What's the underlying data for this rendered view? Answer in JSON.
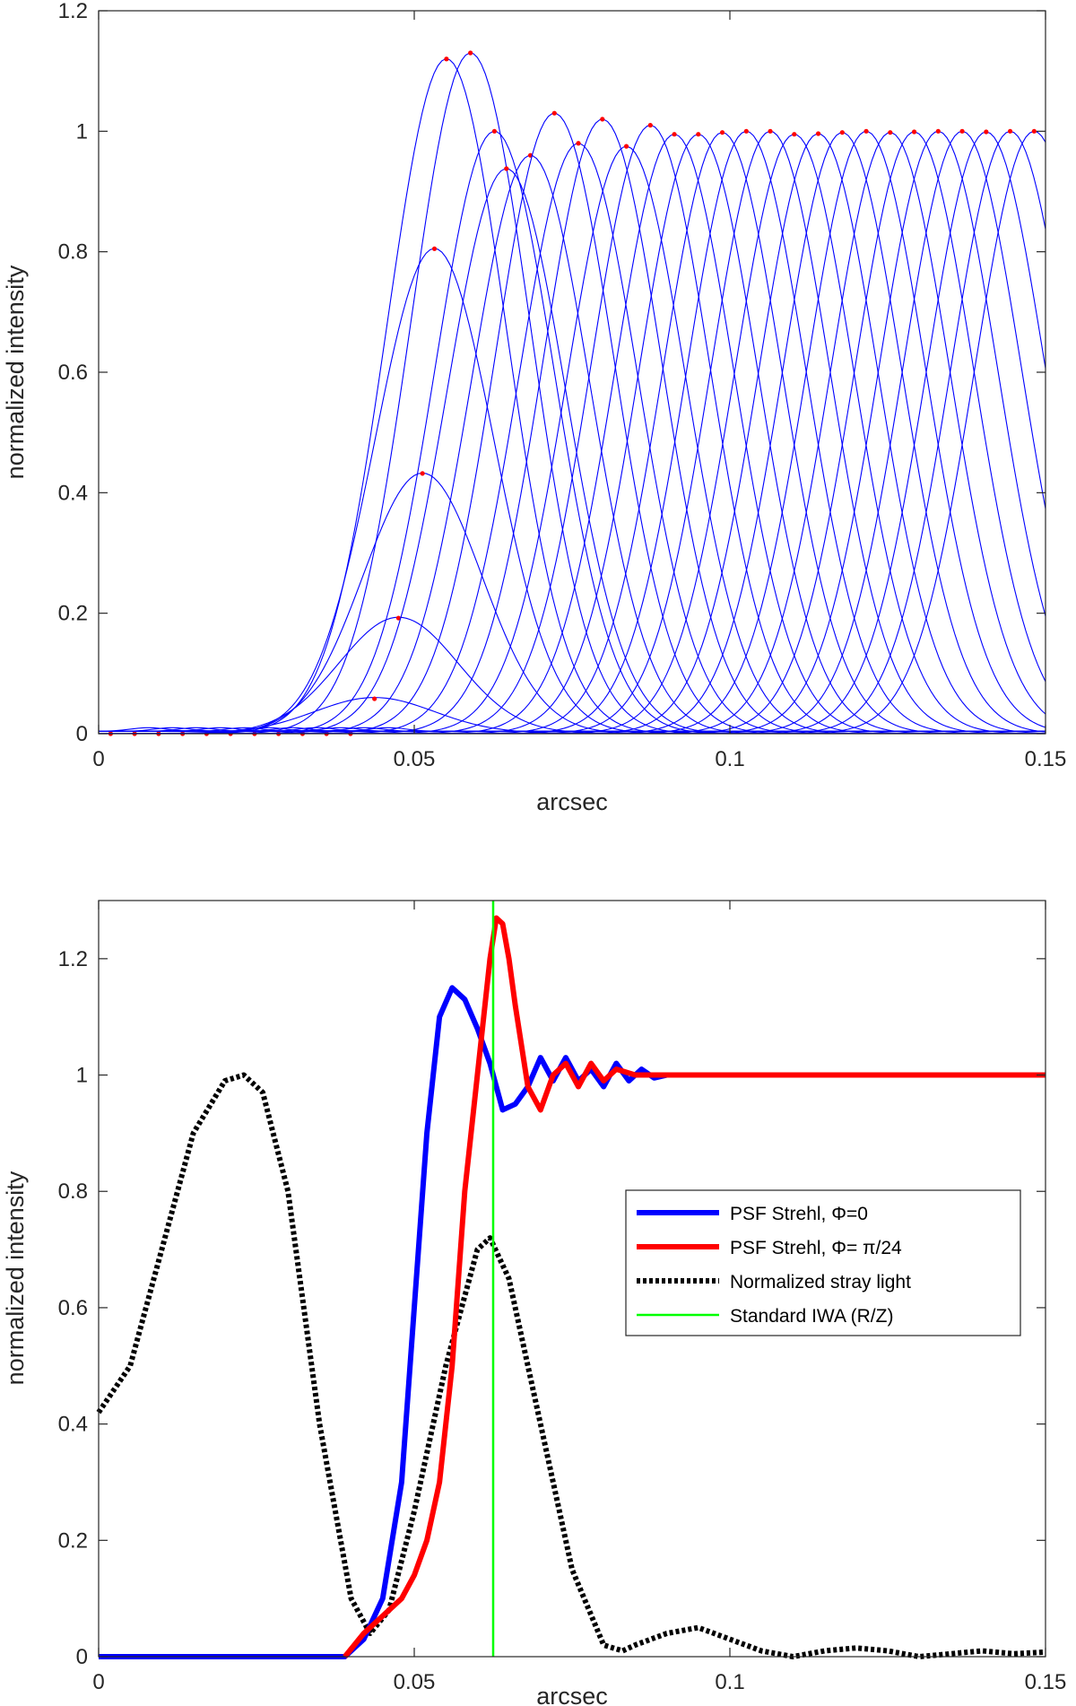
{
  "chart_data": [
    {
      "type": "line",
      "xlabel": "arcsec",
      "ylabel": "normalized intensity",
      "xlim": [
        0,
        0.15
      ],
      "ylim": [
        0,
        1.2
      ],
      "xticks": [
        0,
        0.05,
        0.1,
        0.15
      ],
      "xtick_labels": [
        "0",
        "0.05",
        "0.1",
        "0.15"
      ],
      "yticks": [
        0,
        0.2,
        0.4,
        0.6,
        0.8,
        1.0,
        1.2
      ],
      "ytick_labels": [
        "0",
        "0.2",
        "0.4",
        "0.6",
        "0.8",
        "1",
        "1.2"
      ],
      "grid": false,
      "line_color": "#0000ff",
      "marker_color": "#ff0000",
      "curve_width": 0.0133,
      "series": [
        {
          "x": [
            0.0019,
            0.0057,
            0.0095,
            0.0133,
            0.0171,
            0.0209,
            0.0247,
            0.0285,
            0.0323,
            0.0361,
            0.0399
          ],
          "y": [
            0.0,
            0.0,
            0.0,
            0.0,
            0.0,
            0.0,
            0.0,
            0.0,
            0.0,
            0.0,
            0.0
          ]
        },
        {
          "x": [
            0.0437
          ],
          "y": [
            0.058
          ]
        },
        {
          "x": [
            0.0475
          ],
          "y": [
            0.192
          ]
        },
        {
          "x": [
            0.0513
          ],
          "y": [
            0.432
          ]
        },
        {
          "x": [
            0.0532
          ],
          "y": [
            0.805
          ]
        },
        {
          "x": [
            0.0551
          ],
          "y": [
            1.12
          ]
        },
        {
          "x": [
            0.0589
          ],
          "y": [
            1.13
          ]
        },
        {
          "x": [
            0.0627
          ],
          "y": [
            1.0
          ]
        },
        {
          "x": [
            0.0646
          ],
          "y": [
            0.938
          ]
        },
        {
          "x": [
            0.0684
          ],
          "y": [
            0.96
          ]
        },
        {
          "x": [
            0.0722
          ],
          "y": [
            1.03
          ]
        },
        {
          "x": [
            0.076
          ],
          "y": [
            0.98
          ]
        },
        {
          "x": [
            0.0798
          ],
          "y": [
            1.02
          ]
        },
        {
          "x": [
            0.0836
          ],
          "y": [
            0.975
          ]
        },
        {
          "x": [
            0.0874
          ],
          "y": [
            1.01
          ]
        },
        {
          "x": [
            0.0912
          ],
          "y": [
            0.995
          ]
        },
        {
          "x": [
            0.095
          ],
          "y": [
            0.995
          ]
        },
        {
          "x": [
            0.0988
          ],
          "y": [
            0.998
          ]
        },
        {
          "x": [
            0.1026
          ],
          "y": [
            1.0
          ]
        },
        {
          "x": [
            0.1064
          ],
          "y": [
            1.0
          ]
        },
        {
          "x": [
            0.1102
          ],
          "y": [
            0.995
          ]
        },
        {
          "x": [
            0.114
          ],
          "y": [
            0.996
          ]
        },
        {
          "x": [
            0.1178
          ],
          "y": [
            0.998
          ]
        },
        {
          "x": [
            0.1216
          ],
          "y": [
            1.0
          ]
        },
        {
          "x": [
            0.1254
          ],
          "y": [
            0.998
          ]
        },
        {
          "x": [
            0.1292
          ],
          "y": [
            0.999
          ]
        },
        {
          "x": [
            0.133
          ],
          "y": [
            1.0
          ]
        },
        {
          "x": [
            0.1368
          ],
          "y": [
            1.0
          ]
        },
        {
          "x": [
            0.1406
          ],
          "y": [
            0.999
          ]
        },
        {
          "x": [
            0.1444
          ],
          "y": [
            1.0
          ]
        },
        {
          "x": [
            0.1482
          ],
          "y": [
            1.0
          ]
        }
      ]
    },
    {
      "type": "line",
      "xlabel": "arcsec",
      "ylabel": "normalized intensity",
      "xlim": [
        0,
        0.15
      ],
      "ylim": [
        0,
        1.3
      ],
      "xticks": [
        0,
        0.05,
        0.1,
        0.15
      ],
      "xtick_labels": [
        "0",
        "0.05",
        "0.1",
        "0.15"
      ],
      "yticks": [
        0,
        0.2,
        0.4,
        0.6,
        0.8,
        1.0,
        1.2
      ],
      "ytick_labels": [
        "0",
        "0.2",
        "0.4",
        "0.6",
        "0.8",
        "1",
        "1.2"
      ],
      "grid": false,
      "legend_position": "center-right",
      "series": [
        {
          "name": "PSF Strehl,  Φ=0",
          "color": "#0000ff",
          "style": "solid-thick",
          "x": [
            0.0,
            0.039,
            0.042,
            0.045,
            0.048,
            0.05,
            0.052,
            0.054,
            0.056,
            0.058,
            0.06,
            0.062,
            0.064,
            0.066,
            0.068,
            0.07,
            0.072,
            0.074,
            0.076,
            0.078,
            0.08,
            0.082,
            0.084,
            0.086,
            0.088,
            0.09,
            0.095,
            0.1,
            0.11,
            0.12,
            0.13,
            0.15
          ],
          "y": [
            0.0,
            0.0,
            0.03,
            0.1,
            0.3,
            0.6,
            0.9,
            1.1,
            1.15,
            1.13,
            1.08,
            1.02,
            0.94,
            0.95,
            0.98,
            1.03,
            0.99,
            1.03,
            0.99,
            1.01,
            0.98,
            1.02,
            0.99,
            1.01,
            0.995,
            1.0,
            1.0,
            1.0,
            1.0,
            1.0,
            1.0,
            1.0
          ]
        },
        {
          "name": "PSF Strehl,  Φ= π/24",
          "color": "#ff0000",
          "style": "solid-thick",
          "x": [
            0.039,
            0.042,
            0.044,
            0.046,
            0.048,
            0.05,
            0.052,
            0.054,
            0.056,
            0.058,
            0.06,
            0.062,
            0.063,
            0.064,
            0.065,
            0.066,
            0.068,
            0.07,
            0.072,
            0.074,
            0.076,
            0.078,
            0.08,
            0.082,
            0.085,
            0.09,
            0.1,
            0.12,
            0.15
          ],
          "y": [
            0.0,
            0.04,
            0.06,
            0.08,
            0.1,
            0.14,
            0.2,
            0.3,
            0.5,
            0.8,
            1.0,
            1.2,
            1.27,
            1.26,
            1.2,
            1.12,
            0.98,
            0.94,
            1.0,
            1.02,
            0.98,
            1.02,
            0.99,
            1.01,
            1.0,
            1.0,
            1.0,
            1.0,
            1.0
          ]
        },
        {
          "name": "Normalized stray light",
          "color": "#000000",
          "style": "dotted-thick",
          "x": [
            0.0,
            0.005,
            0.01,
            0.015,
            0.02,
            0.023,
            0.026,
            0.03,
            0.035,
            0.04,
            0.043,
            0.046,
            0.05,
            0.055,
            0.06,
            0.062,
            0.065,
            0.07,
            0.075,
            0.08,
            0.083,
            0.085,
            0.09,
            0.095,
            0.1,
            0.105,
            0.11,
            0.115,
            0.12,
            0.125,
            0.13,
            0.135,
            0.14,
            0.145,
            0.15
          ],
          "y": [
            0.42,
            0.5,
            0.7,
            0.9,
            0.99,
            1.0,
            0.97,
            0.8,
            0.4,
            0.1,
            0.04,
            0.08,
            0.25,
            0.5,
            0.7,
            0.72,
            0.65,
            0.4,
            0.15,
            0.02,
            0.01,
            0.02,
            0.04,
            0.05,
            0.03,
            0.01,
            0.0,
            0.01,
            0.015,
            0.01,
            0.0,
            0.005,
            0.01,
            0.005,
            0.008
          ]
        },
        {
          "name": "Standard IWA (R/Z)",
          "color": "#00ff00",
          "style": "vline",
          "x": [
            0.0625,
            0.0625
          ],
          "y": [
            0,
            1.3
          ]
        }
      ]
    }
  ]
}
